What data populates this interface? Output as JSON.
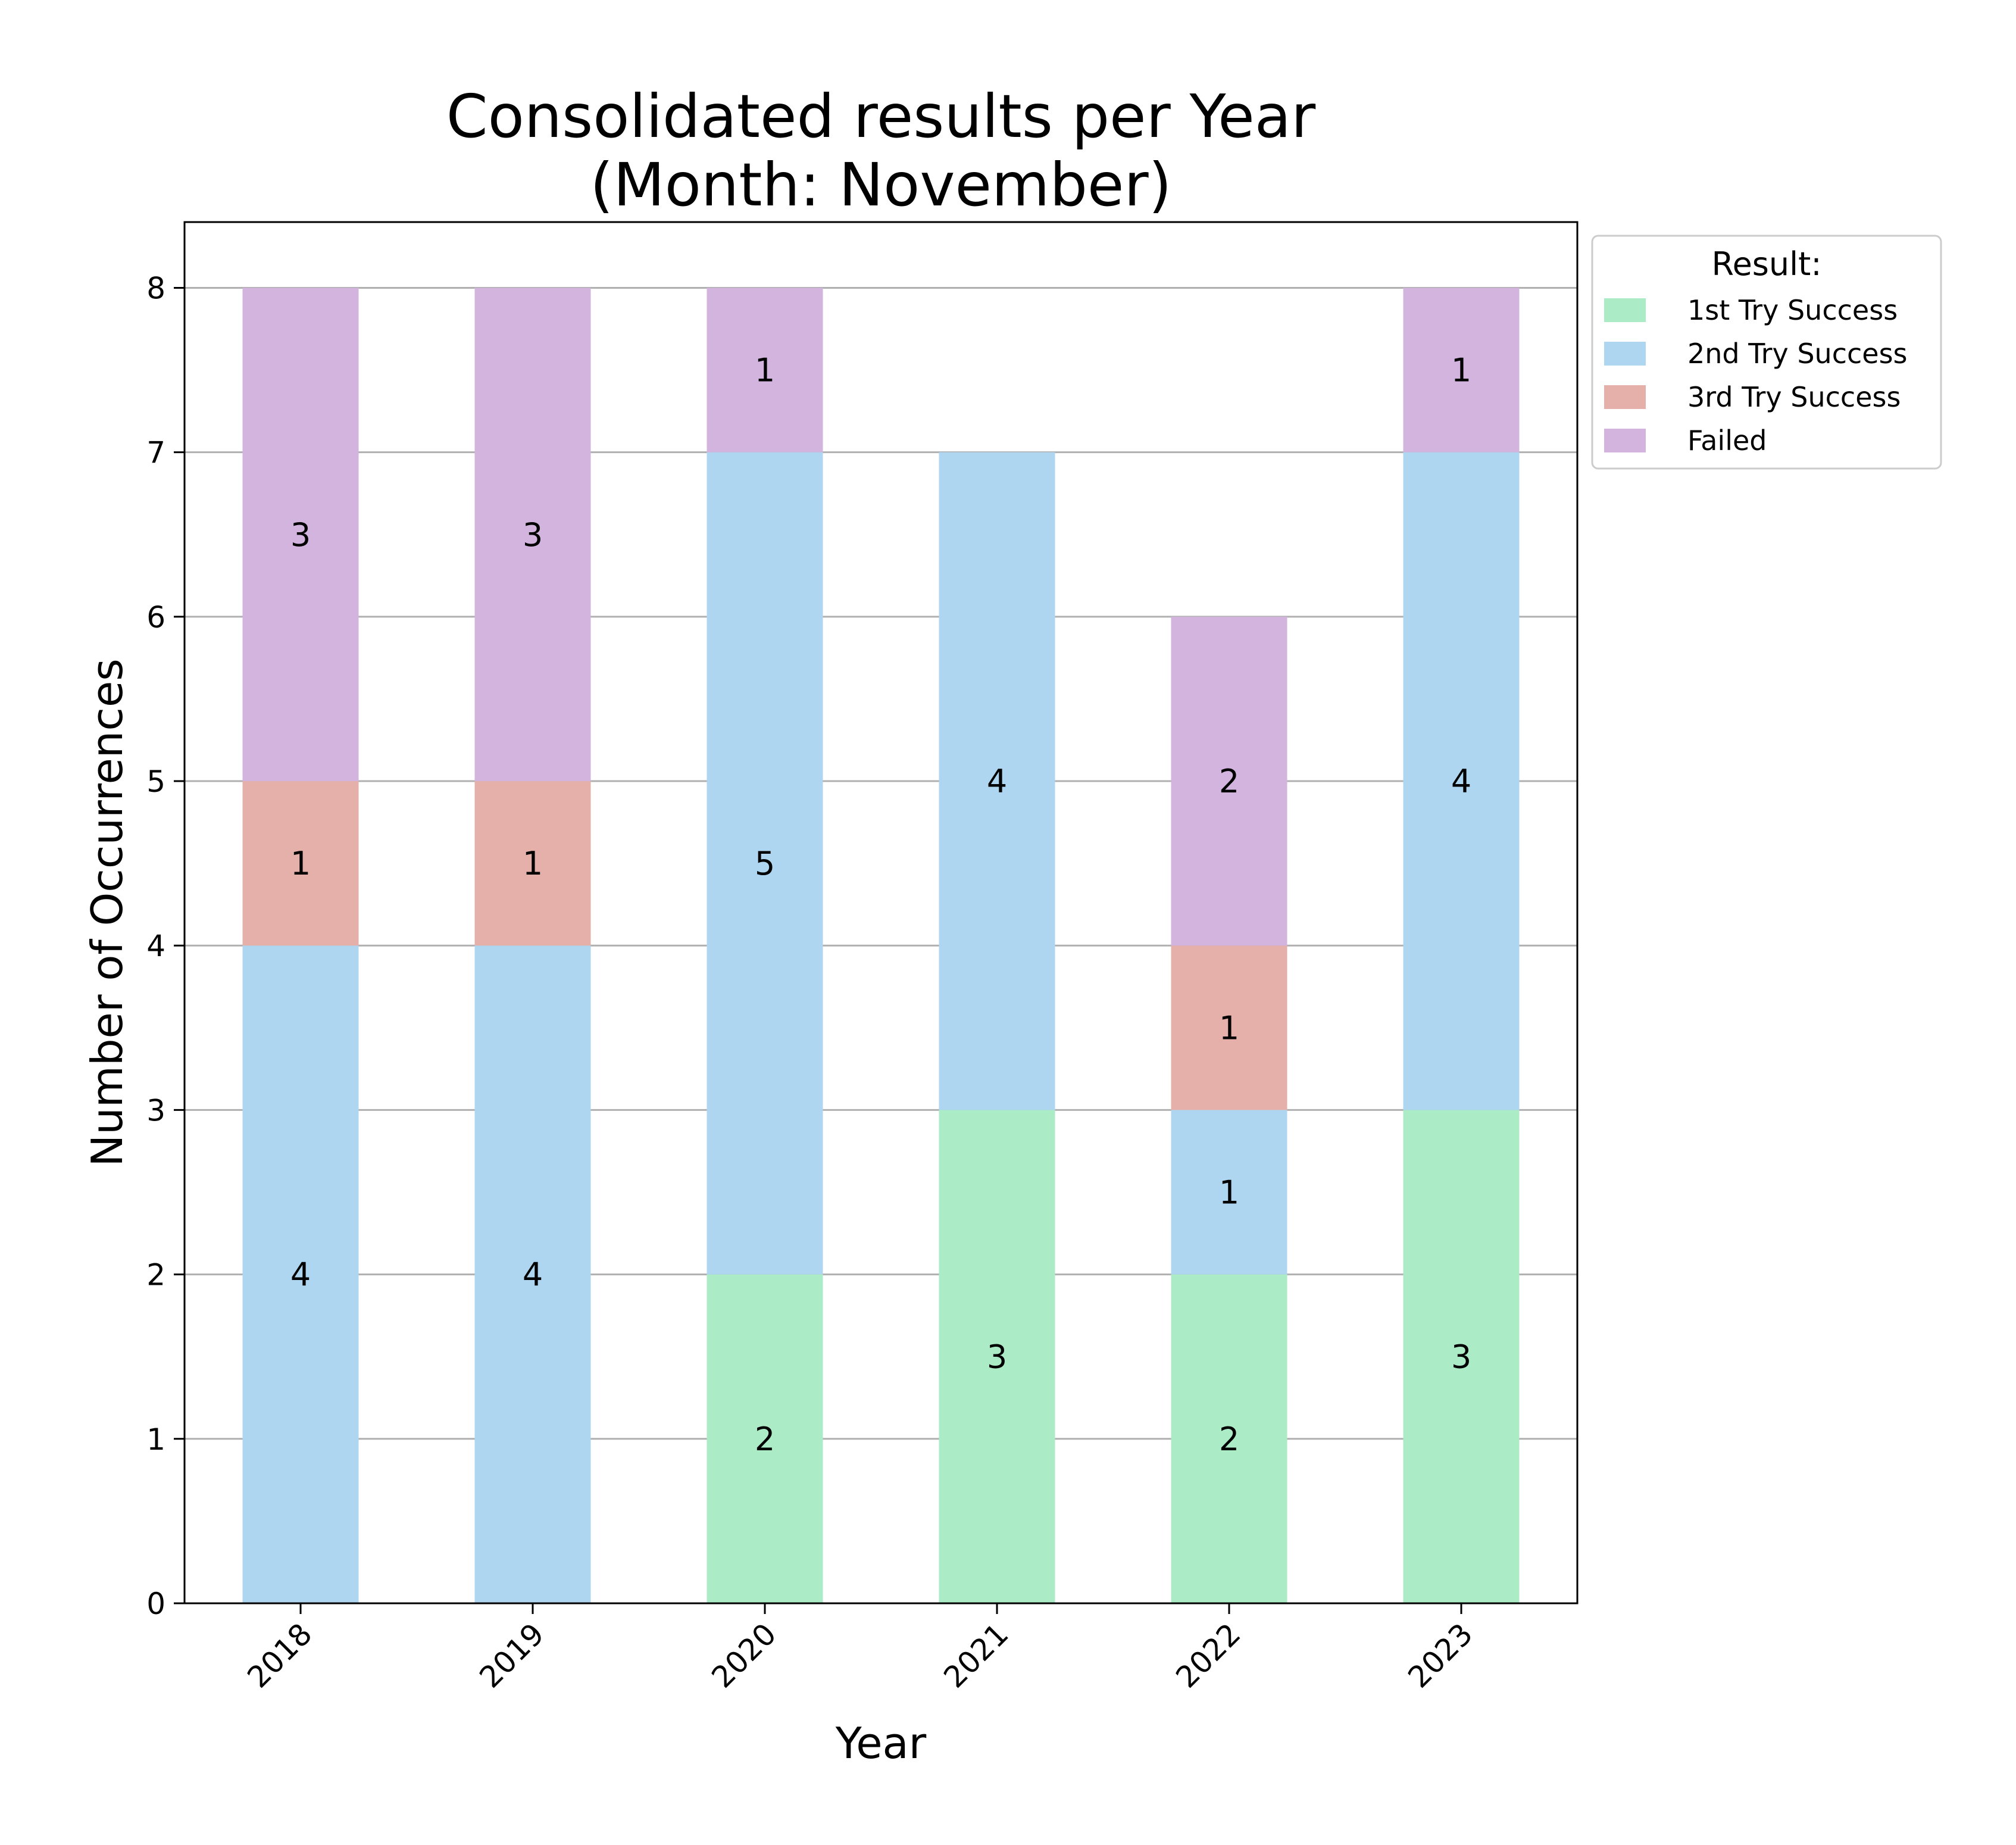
{
  "chart_data": {
    "type": "bar",
    "stacked": true,
    "title_lines": [
      "Consolidated results per Year",
      "(Month: November)"
    ],
    "xlabel": "Year",
    "ylabel": "Number of Occurrences",
    "categories": [
      "2018",
      "2019",
      "2020",
      "2021",
      "2022",
      "2023"
    ],
    "ylim": [
      0,
      8.4
    ],
    "yticks": [
      0,
      1,
      2,
      3,
      4,
      5,
      6,
      7,
      8
    ],
    "grid": "horizontal",
    "legend": {
      "title": "Result:",
      "placement": "outside top-right"
    },
    "series": [
      {
        "name": "1st Try Success",
        "color": "#abebc6",
        "values": [
          0,
          0,
          2,
          3,
          2,
          3
        ]
      },
      {
        "name": "2nd Try Success",
        "color": "#aed6f1",
        "values": [
          4,
          4,
          5,
          4,
          1,
          4
        ]
      },
      {
        "name": "3rd Try Success",
        "color": "#e6b0aa",
        "values": [
          1,
          1,
          0,
          0,
          1,
          0
        ]
      },
      {
        "name": "Failed",
        "color": "#d2b4de",
        "values": [
          3,
          3,
          1,
          0,
          2,
          1
        ]
      }
    ]
  }
}
